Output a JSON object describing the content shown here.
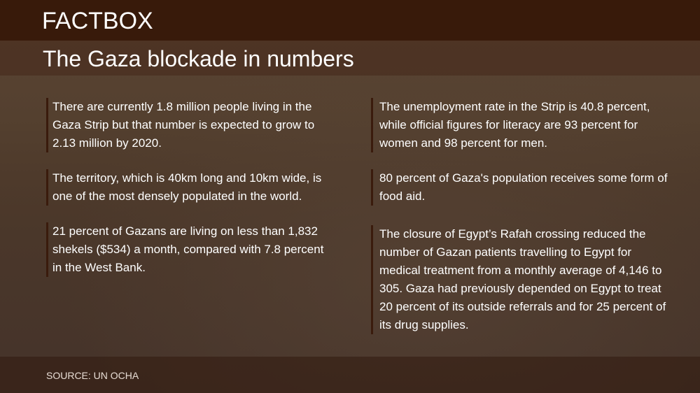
{
  "header": {
    "label": "FACTBOX",
    "title": "The Gaza blockade in numbers"
  },
  "left_column": [
    "There are currently 1.8 million people living in the Gaza Strip but that number is expected to grow to 2.13 million by 2020.",
    "The territory, which is 40km long and 10km wide, is one of the most densely populated in the world.",
    "21 percent of Gazans are living on less than 1,832 shekels ($534) a month, compared with 7.8 percent in the West Bank."
  ],
  "right_column": [
    "The unemployment rate in the Strip is 40.8 percent, while official figures for literacy are 93 percent for women and 98 percent for men.",
    "80 percent of Gaza's population receives some form of food aid.",
    "The closure of Egypt’s Rafah crossing reduced the number of Gazan patients travelling to Egypt for medical treatment from a monthly average of 4,146 to 305. Gaza had previously depended on Egypt to treat 20 percent of its outside referrals and for 25 percent of its drug supplies."
  ],
  "footer": {
    "source": "SOURCE: UN OCHA"
  },
  "colors": {
    "header_bar": "#381a0a",
    "accent_border": "#3a1b0c"
  }
}
